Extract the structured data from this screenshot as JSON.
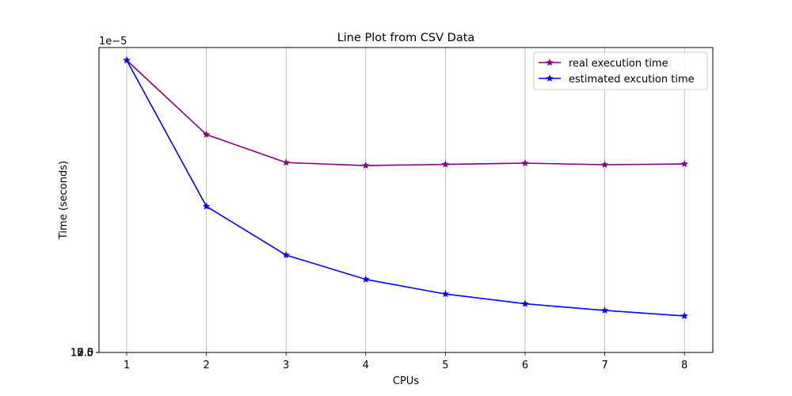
{
  "chart_data": {
    "type": "line",
    "title": "Line Plot from CSV Data",
    "xlabel": "CPUs",
    "ylabel": "Time (seconds)",
    "offset_text": "1e−5",
    "x": [
      1,
      2,
      3,
      4,
      5,
      6,
      7,
      8
    ],
    "x_tick_labels": [
      "1",
      "2",
      "3",
      "4",
      "5",
      "6",
      "7",
      "8"
    ],
    "y_tick_labels": [
      "0.0",
      "2.5",
      "5.0",
      "7.5",
      "10.0",
      "12.5",
      "15.0",
      "17.5"
    ],
    "ylim": [
      0,
      2.5
    ],
    "grid": "vertical",
    "legend_position": "top-right",
    "series": [
      {
        "name": "real execution time",
        "color": "#800080",
        "marker": "star",
        "values": [
          2.4,
          1.79,
          1.56,
          1.535,
          1.545,
          1.555,
          1.542,
          1.548
        ]
      },
      {
        "name": "estimated excution time",
        "color": "#0000ff",
        "marker": "star",
        "values": [
          2.4,
          1.2,
          0.8,
          0.6,
          0.48,
          0.4,
          0.345,
          0.3
        ]
      }
    ]
  }
}
